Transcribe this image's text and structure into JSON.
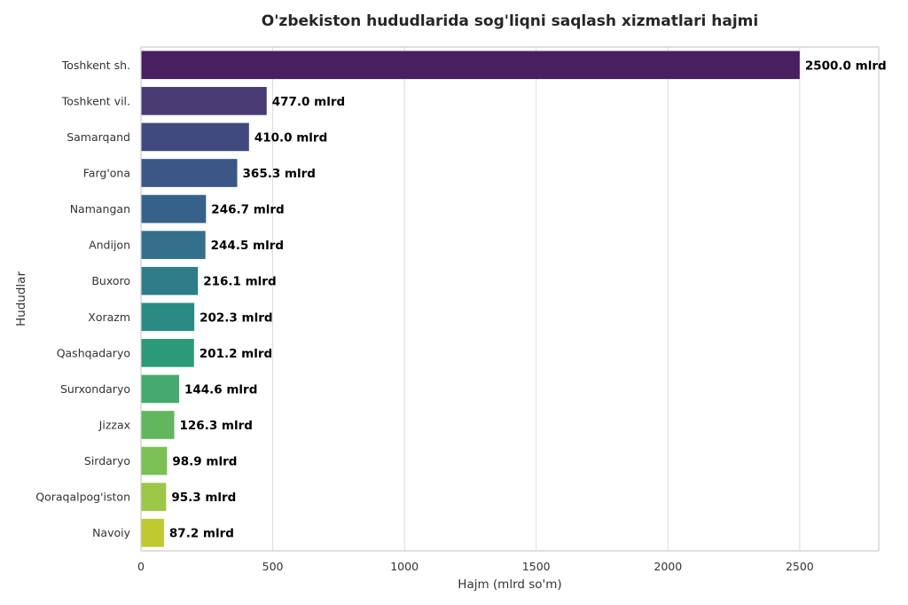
{
  "chart_data": {
    "type": "bar",
    "orientation": "horizontal",
    "title": "O'zbekiston hududlarida sog'liqni saqlash xizmatlari hajmi",
    "xlabel": "Hajm (mlrd so'm)",
    "ylabel": "Hududlar",
    "xlim": [
      0,
      2800
    ],
    "xticks": [
      0,
      500,
      1000,
      1500,
      2000,
      2500
    ],
    "grid": true,
    "categories": [
      "Toshkent sh.",
      "Toshkent vil.",
      "Samarqand",
      "Farg'ona",
      "Namangan",
      "Andijon",
      "Buxoro",
      "Xorazm",
      "Qashqadaryo",
      "Surxondaryo",
      "Jizzax",
      "Sirdaryo",
      "Qoraqalpog'iston",
      "Navoiy"
    ],
    "values": [
      2500.0,
      477.0,
      410.0,
      365.3,
      246.7,
      244.5,
      216.1,
      202.3,
      201.2,
      144.6,
      126.3,
      98.9,
      95.3,
      87.2
    ],
    "data_labels": [
      "2500.0 mlrd",
      "477.0 mlrd",
      "410.0 mlrd",
      "365.3 mlrd",
      "246.7 mlrd",
      "244.5 mlrd",
      "216.1 mlrd",
      "202.3 mlrd",
      "201.2 mlrd",
      "144.6 mlrd",
      "126.3 mlrd",
      "98.9 mlrd",
      "95.3 mlrd",
      "87.2 mlrd"
    ],
    "colors": [
      "#481f5f",
      "#483a72",
      "#414a7e",
      "#3b5787",
      "#36628a",
      "#33708b",
      "#2e7d89",
      "#2a8b84",
      "#2c9979",
      "#44aa6d",
      "#62b65e",
      "#7bc055",
      "#9cc747",
      "#bfca2e"
    ]
  }
}
